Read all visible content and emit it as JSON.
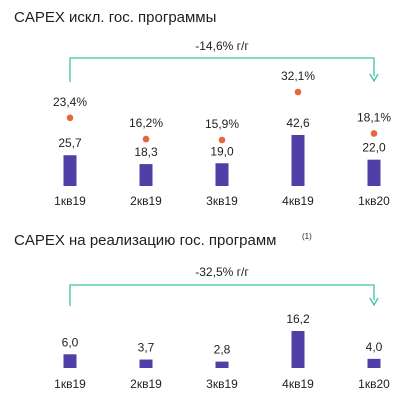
{
  "chart_data": [
    {
      "type": "bar",
      "title": "CAPEX искл. гос. программы",
      "categories": [
        "1кв19",
        "2кв19",
        "3кв19",
        "4кв19",
        "1кв20"
      ],
      "values": [
        25.7,
        18.3,
        19.0,
        42.6,
        22.0
      ],
      "value_labels": [
        "25,7",
        "18,3",
        "19,0",
        "42,6",
        "22,0"
      ],
      "percentages": [
        23.4,
        16.2,
        15.9,
        32.1,
        18.1
      ],
      "percentage_labels": [
        "23,4%",
        "16,2%",
        "15,9%",
        "32,1%",
        "18,1%"
      ],
      "change_label": "-14,6% г/г",
      "bar_color": "#4f3fa6",
      "dot_color": "#e8643c",
      "arrow_color": "#3ec3a4"
    },
    {
      "type": "bar",
      "title": "CAPEX на реализацию гос. программ",
      "title_note": "(1)",
      "categories": [
        "1кв19",
        "2кв19",
        "3кв19",
        "4кв19",
        "1кв20"
      ],
      "values": [
        6.0,
        3.7,
        2.8,
        16.2,
        4.0
      ],
      "value_labels": [
        "6,0",
        "3,7",
        "2,8",
        "16,2",
        "4,0"
      ],
      "change_label": "-32,5% г/г",
      "bar_color": "#4f3fa6",
      "arrow_color": "#3ec3a4"
    }
  ]
}
